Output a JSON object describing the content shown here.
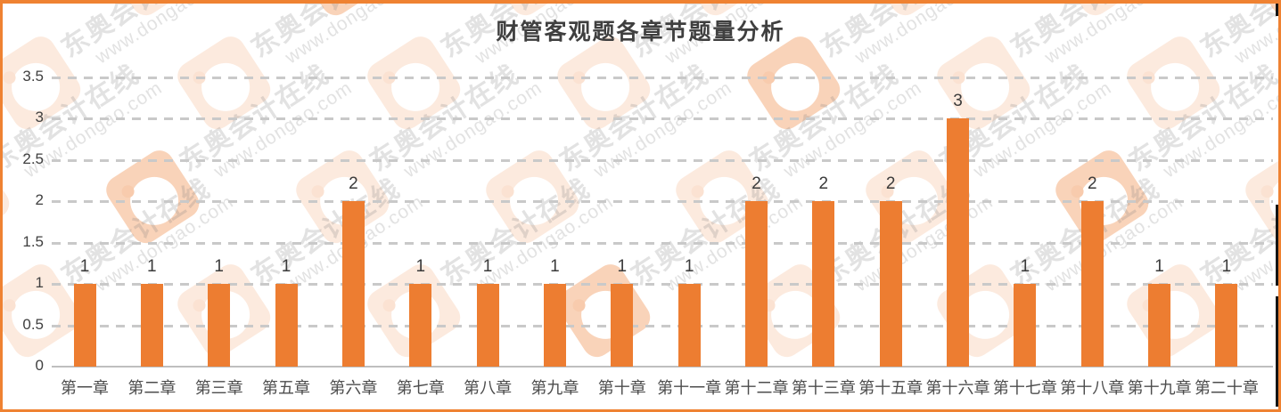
{
  "watermark": {
    "brand": "东奥会计在线",
    "url": "www.dongao.com"
  },
  "colors": {
    "bar": "#ED7D31",
    "frame_border": "#EF8232",
    "gridline": "#C9C9C9",
    "axis_line": "#BFBFBF",
    "title_text": "#3F3F3F",
    "tick_text": "#404040"
  },
  "chart_data": {
    "type": "bar",
    "title": "财管客观题各章节题量分析",
    "categories": [
      "第一章",
      "第二章",
      "第三章",
      "第五章",
      "第六章",
      "第七章",
      "第八章",
      "第九章",
      "第十章",
      "第十一章",
      "第十二章",
      "第十三章",
      "第十五章",
      "第十六章",
      "第十七章",
      "第十八章",
      "第十九章",
      "第二十章"
    ],
    "values": [
      1,
      1,
      1,
      1,
      2,
      1,
      1,
      1,
      1,
      1,
      2,
      2,
      2,
      3,
      1,
      2,
      1,
      1
    ],
    "data_labels": true,
    "xlabel": "",
    "ylabel": "",
    "ylim": [
      0,
      3.5
    ],
    "yticks": [
      0,
      0.5,
      1,
      1.5,
      2,
      2.5,
      3,
      3.5
    ],
    "grid": "horizontal-dashed",
    "legend": "none",
    "bar_color": "#ED7D31"
  }
}
